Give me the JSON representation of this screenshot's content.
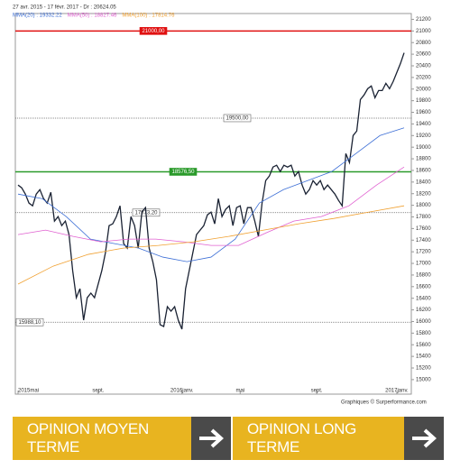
{
  "chart_data": {
    "type": "line",
    "header": "27 avr. 2015 - 17 févr. 2017 - Dr : 20624.05",
    "credit": "Graphiques © Surperformance.com",
    "ylim": [
      14750,
      21300
    ],
    "yticks": [
      15000,
      15200,
      15400,
      15600,
      15800,
      16000,
      16200,
      16400,
      16600,
      16800,
      17000,
      17200,
      17400,
      17600,
      17800,
      18000,
      18200,
      18400,
      18600,
      18800,
      19000,
      19200,
      19400,
      19600,
      19800,
      20000,
      20200,
      20400,
      20600,
      20800,
      21000,
      21200
    ],
    "xticks": [
      {
        "value": 0,
        "label": "2015mai"
      },
      {
        "value": 22,
        "label": "sept."
      },
      {
        "value": 45,
        "label": "2016janv."
      },
      {
        "value": 61,
        "label": "mai"
      },
      {
        "value": 82,
        "label": "sept."
      },
      {
        "value": 104,
        "label": "2017janv."
      }
    ],
    "levels": [
      {
        "value": 21000,
        "label": "21000,00",
        "color": "#e01010"
      },
      {
        "value": 19500,
        "label": "19500,00",
        "color": "#666666"
      },
      {
        "value": 18576.5,
        "label": "18576,50",
        "color": "#2a9a2a"
      },
      {
        "value": 17873.2,
        "label": "17873,20",
        "color": "#666666"
      },
      {
        "value": 15988.1,
        "label": "15988,10",
        "color": "#666666"
      }
    ],
    "series": [
      {
        "color": "#1a2233",
        "values": [
          18348,
          18301,
          18193,
          18038,
          17991,
          18193,
          18270,
          18115,
          18038,
          18224,
          17728,
          17805,
          17650,
          17728,
          17495,
          16875,
          16410,
          16565,
          16023,
          16410,
          16488,
          16410,
          16643,
          16875,
          17185,
          17650,
          17681,
          17805,
          17991,
          17340,
          17263,
          17805,
          17650,
          17263,
          17883,
          17960,
          17263,
          17030,
          16720,
          15945,
          15914,
          16255,
          16178,
          16255,
          16023,
          15868,
          16565,
          16875,
          17185,
          17495,
          17573,
          17650,
          17836,
          17883,
          17681,
          18115,
          17805,
          17929,
          17991,
          17650,
          17960,
          17991,
          17681,
          17960,
          17960,
          17728,
          17464,
          18038,
          18425,
          18503,
          18658,
          18689,
          18580,
          18689,
          18658,
          18689,
          18503,
          18580,
          18348,
          18193,
          18270,
          18425,
          18348,
          18425,
          18270,
          18348,
          18270,
          18193,
          18084,
          17991,
          18890,
          18735,
          19200,
          19278,
          19820,
          19898,
          20006,
          20053,
          19851,
          19975,
          19975,
          20099,
          20006,
          20130,
          20285,
          20440,
          20624
        ]
      },
      {
        "name": "MMA(20) : 19332.22",
        "color": "#3d6fd6",
        "values": [
          18193,
          18115,
          17805,
          17418,
          17340,
          17263,
          17108,
          17030,
          17108,
          17418,
          18038,
          18270,
          18425,
          18580,
          18890,
          19200,
          19332
        ]
      },
      {
        "name": "MMA(50) : 18827.46",
        "color": "#e060d0",
        "values": [
          17495,
          17573,
          17464,
          17371,
          17418,
          17418,
          17371,
          17309,
          17309,
          17527,
          17728,
          17805,
          17991,
          18348,
          18658
        ]
      },
      {
        "name": "MMA(100) : 17814.76",
        "color": "#f0a030",
        "values": [
          16643,
          16953,
          17155,
          17263,
          17309,
          17371,
          17464,
          17573,
          17681,
          17774,
          17883,
          17991
        ]
      }
    ]
  },
  "buttons": [
    "OPINION MOYEN TERME",
    "OPINION LONG TERME"
  ]
}
